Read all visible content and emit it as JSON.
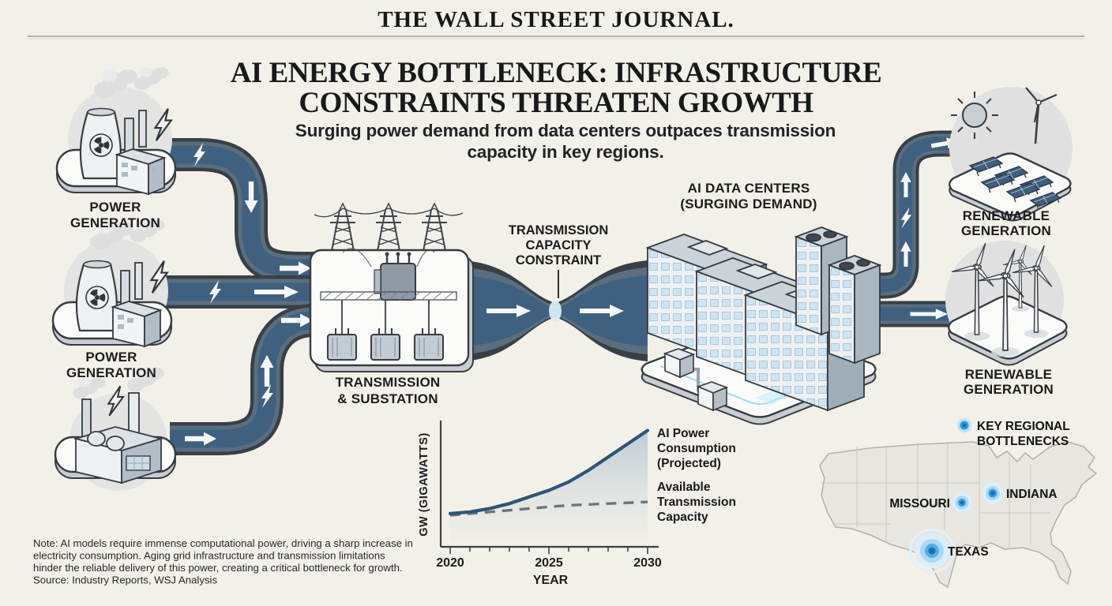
{
  "masthead": {
    "title": "THE WALL STREET JOURNAL."
  },
  "title": {
    "line1": "AI ENERGY BOTTLENECK: INFRASTRUCTURE",
    "line2": "CONSTRAINTS THREATEN GROWTH"
  },
  "subtitle": {
    "line1": "Surging power demand from data centers outpaces transmission",
    "line2": "capacity in key regions."
  },
  "labels": {
    "power_gen_top": {
      "line1": "POWER",
      "line2": "GENERATION"
    },
    "power_gen_mid": {
      "line1": "POWER",
      "line2": "GENERATION"
    },
    "substation": {
      "line1": "TRANSMISSION",
      "line2": "& SUBSTATION"
    },
    "constraint": {
      "line1": "TRANSMISSION",
      "line2": "CAPACITY",
      "line3": "CONSTRAINT"
    },
    "data_centers": {
      "line1": "AI DATA CENTERS",
      "line2": "(SURGING DEMAND)"
    },
    "renewable_top": {
      "line1": "RENEWABLE",
      "line2": "GENERATION"
    },
    "renewable_bottom": {
      "line1": "RENEWABLE",
      "line2": "GENERATION"
    }
  },
  "chart_data": {
    "type": "area",
    "xlabel": "YEAR",
    "ylabel": "GW (GIGAWATTS)",
    "x": [
      2020,
      2021,
      2022,
      2023,
      2024,
      2025,
      2026,
      2027,
      2028,
      2029,
      2030
    ],
    "x_ticks": [
      "2020",
      "2025",
      "2030"
    ],
    "ylim": [
      0,
      75
    ],
    "grid": false,
    "legend_position": "right",
    "series": [
      {
        "name": "AI Power Consumption (Projected)",
        "style": "solid",
        "values": [
          20,
          21,
          23,
          26,
          30,
          34,
          39,
          46,
          54,
          62,
          70
        ]
      },
      {
        "name": "Available Transmission Capacity",
        "style": "dashed",
        "values": [
          19,
          20,
          21,
          22,
          23,
          24,
          25,
          25.5,
          26,
          26.5,
          27
        ]
      }
    ],
    "legend": [
      {
        "lines": [
          "AI Power",
          "Consumption",
          "(Projected)"
        ]
      },
      {
        "lines": [
          "Available",
          "Transmission",
          "Capacity"
        ]
      }
    ]
  },
  "map": {
    "legend": {
      "line1": "KEY REGIONAL",
      "line2": "BOTTLENECKS"
    },
    "markers": [
      {
        "name": "MISSOURI"
      },
      {
        "name": "INDIANA"
      },
      {
        "name": "TEXAS"
      }
    ]
  },
  "note": {
    "lines": [
      "Note: AI models require immense computational power, driving a sharp increase in",
      "electricity consumption. Aging grid infrastructure and transmission limitations",
      "hinder the reliable delivery of this power, creating a critical bottleneck for growth.",
      "Source: Industry Reports, WSJ Analysis"
    ]
  },
  "colors": {
    "background": "#f2f0e9",
    "pipe_outer": "#393f46",
    "pipe_band": "#5b6e80",
    "pipe_core": "#40607f",
    "chart_line": "#2e5578",
    "chart_dashed": "#6a7480",
    "marker_blue": "#2e9be0",
    "accent_glow": "#bfeaf8",
    "text": "#1c1c1c"
  }
}
